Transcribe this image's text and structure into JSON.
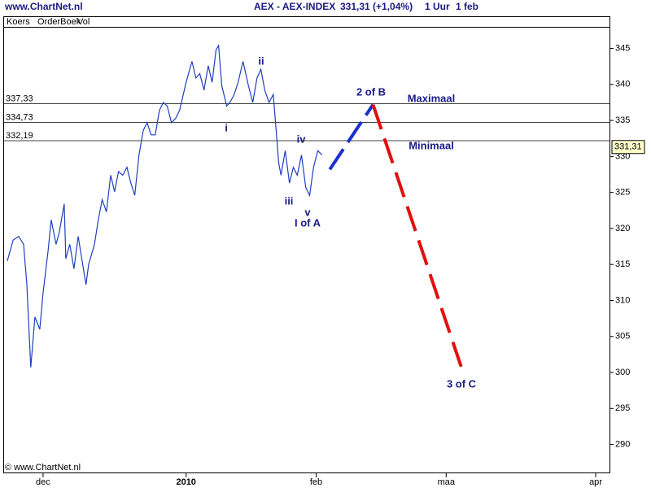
{
  "chart_data": {
    "type": "line",
    "site": "www.ChartNet.nl",
    "title": "AEX - AEX-INDEX",
    "quote": "331,31 (+1,04%)",
    "interval": "1 Uur",
    "date": "1 feb",
    "tabs": [
      "Koers",
      "OrderBoek",
      "Vol"
    ],
    "copyright": "© www.ChartNet.nl",
    "series": [
      {
        "color": "#1f3fbf",
        "x": [
          -5.5,
          -4.6,
          -3.75,
          -3,
          -2.5,
          -1.9,
          -1.25,
          -0.5,
          0,
          0.75,
          1.25,
          2,
          2.5,
          3.25,
          3.5,
          4.1,
          4.75,
          5.4,
          6,
          6.6,
          7,
          7.9,
          8.5,
          9.1,
          9.75,
          10.4,
          11,
          11.6,
          12.25,
          12.9,
          13.5,
          14.1,
          14.75,
          15.4,
          16,
          16.6,
          17.25,
          17.9,
          18.5,
          19.1,
          19.75,
          20.4,
          21,
          22,
          22.9,
          23.5,
          24.1,
          24.75,
          25.4,
          26,
          26.6,
          27,
          27.5,
          28.25,
          28.75,
          29.4,
          30,
          30.75,
          31.6,
          32.25,
          32.9,
          33.5,
          34.1,
          34.75,
          35.4,
          35.75,
          36.25,
          36.6,
          37.25,
          37.9,
          38.5,
          39.1,
          39.75,
          40.4,
          41,
          41.6,
          42.25,
          42.9
        ],
        "values": [
          315.5,
          318.4,
          318.9,
          317.8,
          312.2,
          300.7,
          307.7,
          306.0,
          311.0,
          316.7,
          321.2,
          317.8,
          319.5,
          323.4,
          315.8,
          317.8,
          314.4,
          318.9,
          315.5,
          312.2,
          315.0,
          317.8,
          321.2,
          324.0,
          322.3,
          327.4,
          325.1,
          327.9,
          327.4,
          328.5,
          326.3,
          324.6,
          330.2,
          333.6,
          334.7,
          333.0,
          333.0,
          336.4,
          337.5,
          337.0,
          334.7,
          335.3,
          336.4,
          340.3,
          343.2,
          340.9,
          341.5,
          339.2,
          342.6,
          340.3,
          344.8,
          345.4,
          339.8,
          337.0,
          337.5,
          338.6,
          340.3,
          343.2,
          339.8,
          337.5,
          340.9,
          342.1,
          339.2,
          337.5,
          338.6,
          334.7,
          329.1,
          327.4,
          330.8,
          326.3,
          328.5,
          327.4,
          330.2,
          325.7,
          324.6,
          328.5,
          330.8,
          330.2
        ]
      }
    ],
    "projections": [
      {
        "color": "#1a2fd0",
        "x": [
          44.1,
          50.75
        ],
        "values": [
          328.2,
          337.2
        ]
      },
      {
        "color": "#e01010",
        "x": [
          50.75,
          64.5
        ],
        "values": [
          337.2,
          300.3
        ]
      }
    ],
    "levels": [
      {
        "value": 337.33,
        "label": "337,33"
      },
      {
        "value": 334.73,
        "label": "334,73"
      },
      {
        "value": 332.19,
        "label": "332,19"
      }
    ],
    "last": {
      "value": 331.31,
      "label": "331,31"
    },
    "annotations": [
      "ii",
      "i",
      "iv",
      "iii",
      "v",
      "I of A",
      "2 of B",
      "Maximaal",
      "Minimaal",
      "3 of C"
    ],
    "xlim": [
      -6,
      87.25
    ],
    "xticks": [
      {
        "value": 0,
        "label": "dec"
      },
      {
        "value": 22,
        "label": "2010"
      },
      {
        "value": 42,
        "label": "feb"
      },
      {
        "value": 62,
        "label": "maa"
      },
      {
        "value": 85,
        "label": "apr"
      }
    ],
    "ylim": [
      286,
      348
    ],
    "yticks": [
      290,
      295,
      300,
      305,
      310,
      315,
      320,
      325,
      330,
      335,
      340,
      345
    ],
    "grid": false
  }
}
